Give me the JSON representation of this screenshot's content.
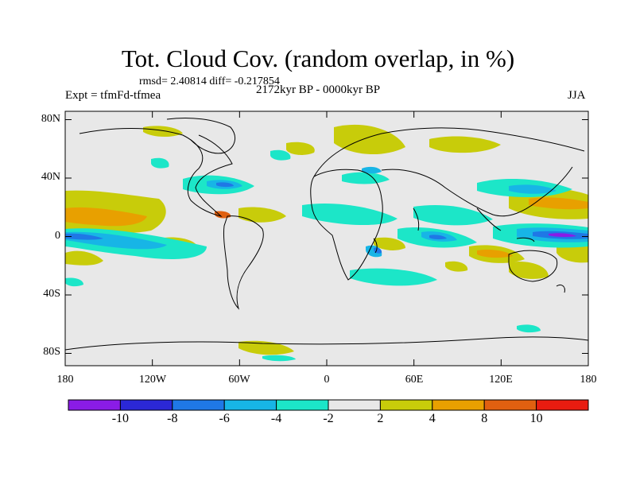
{
  "title": "Tot. Cloud Cov. (random overlap, in %)",
  "stats": "rmsd= 2.40814 diff= -0.217854",
  "experiment": "Expt = tfmFd-tfmea",
  "period": "2172kyr BP - 0000kyr BP",
  "season": "JJA",
  "lat_labels": [
    "80N",
    "40N",
    "0",
    "40S",
    "80S"
  ],
  "lon_labels": [
    "180",
    "120W",
    "60W",
    "0",
    "60E",
    "120E",
    "180"
  ],
  "colorbar": {
    "labels": [
      "-10",
      "-8",
      "-6",
      "-4",
      "-2",
      "2",
      "4",
      "8",
      "10"
    ],
    "colors": [
      "#8a1ce6",
      "#2b28d6",
      "#1f78e6",
      "#17b5e6",
      "#1ce6c8",
      "#e8e8e8",
      "#c8cc0a",
      "#e8a000",
      "#e06010",
      "#e81c10"
    ]
  },
  "map_background": "#e8e8e8"
}
